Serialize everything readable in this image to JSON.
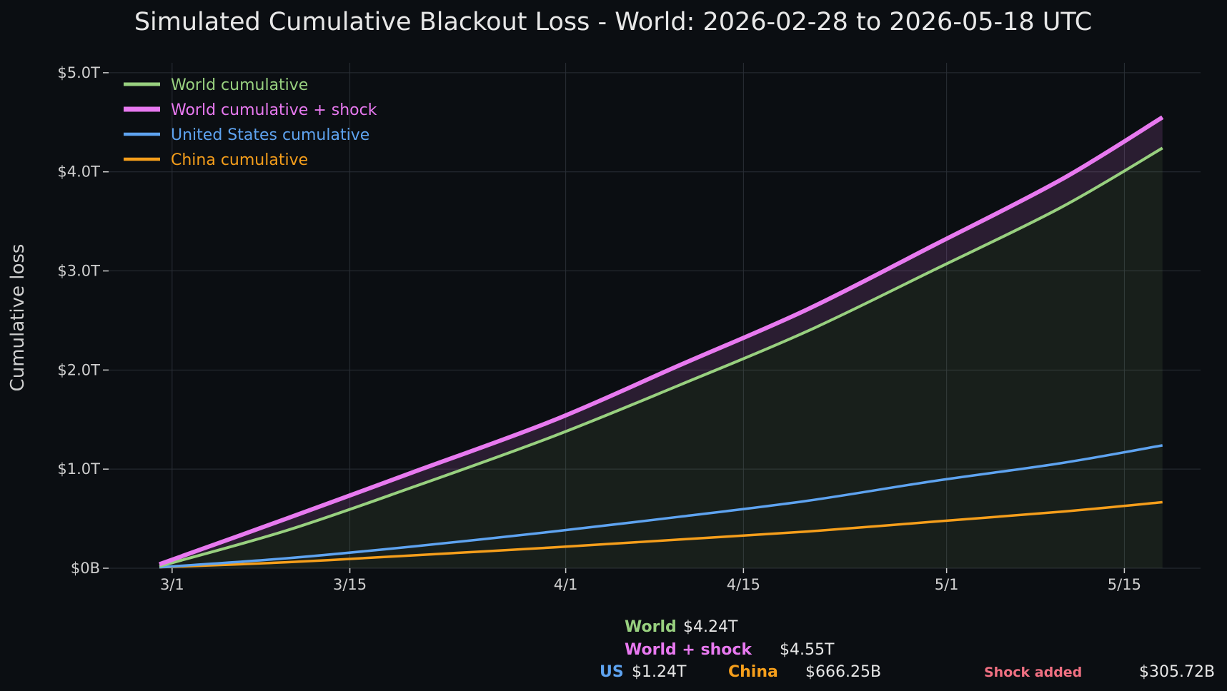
{
  "chart_data": {
    "type": "line",
    "title": "Simulated Cumulative Blackout Loss - World: 2026-02-28 to 2026-05-18 UTC",
    "xlabel": "",
    "ylabel": "Cumulative loss",
    "x_range": [
      "2026-02-28",
      "2026-05-18"
    ],
    "xlim": [
      "2026-02-24",
      "2026-05-21"
    ],
    "ylim": [
      0,
      5.1
    ],
    "y_unit": "trillion USD",
    "grid": true,
    "legend_position": "top-left",
    "x_ticks": [
      {
        "date": "2026-03-01",
        "label": "3/1"
      },
      {
        "date": "2026-03-15",
        "label": "3/15"
      },
      {
        "date": "2026-04-01",
        "label": "4/1"
      },
      {
        "date": "2026-04-15",
        "label": "4/15"
      },
      {
        "date": "2026-05-01",
        "label": "5/1"
      },
      {
        "date": "2026-05-15",
        "label": "5/15"
      }
    ],
    "y_ticks": [
      {
        "value": 0,
        "label": "$0B"
      },
      {
        "value": 1,
        "label": "$1.0T"
      },
      {
        "value": 2,
        "label": "$2.0T"
      },
      {
        "value": 3,
        "label": "$3.0T"
      },
      {
        "value": 4,
        "label": "$4.0T"
      },
      {
        "value": 5,
        "label": "$5.0T"
      }
    ],
    "series": [
      {
        "name": "World cumulative",
        "color": "#98d07f",
        "fill": true,
        "points": [
          [
            "2026-02-28",
            0.02
          ],
          [
            "2026-03-10",
            0.38
          ],
          [
            "2026-03-20",
            0.82
          ],
          [
            "2026-03-31",
            1.33
          ],
          [
            "2026-04-10",
            1.85
          ],
          [
            "2026-04-20",
            2.39
          ],
          [
            "2026-04-30",
            3.01
          ],
          [
            "2026-05-10",
            3.64
          ],
          [
            "2026-05-18",
            4.24
          ]
        ]
      },
      {
        "name": "World cumulative + shock",
        "color": "#e879f0",
        "points": [
          [
            "2026-02-28",
            0.04
          ],
          [
            "2026-03-10",
            0.5
          ],
          [
            "2026-03-20",
            0.97
          ],
          [
            "2026-03-31",
            1.49
          ],
          [
            "2026-04-10",
            2.05
          ],
          [
            "2026-04-20",
            2.61
          ],
          [
            "2026-04-30",
            3.26
          ],
          [
            "2026-05-10",
            3.92
          ],
          [
            "2026-05-18",
            4.55
          ]
        ]
      },
      {
        "name": "United States cumulative",
        "color": "#5ea3f0",
        "points": [
          [
            "2026-02-28",
            0.01
          ],
          [
            "2026-03-10",
            0.1
          ],
          [
            "2026-03-20",
            0.22
          ],
          [
            "2026-03-31",
            0.37
          ],
          [
            "2026-04-10",
            0.52
          ],
          [
            "2026-04-20",
            0.68
          ],
          [
            "2026-04-30",
            0.88
          ],
          [
            "2026-05-10",
            1.06
          ],
          [
            "2026-05-18",
            1.24
          ]
        ]
      },
      {
        "name": "China cumulative",
        "color": "#f59e1b",
        "points": [
          [
            "2026-02-28",
            0.01
          ],
          [
            "2026-03-10",
            0.06
          ],
          [
            "2026-03-20",
            0.13
          ],
          [
            "2026-03-31",
            0.21
          ],
          [
            "2026-04-10",
            0.29
          ],
          [
            "2026-04-20",
            0.37
          ],
          [
            "2026-04-30",
            0.47
          ],
          [
            "2026-05-10",
            0.57
          ],
          [
            "2026-05-18",
            0.666
          ]
        ]
      }
    ]
  },
  "summary": {
    "world_label": "World",
    "world_value": "$4.24T",
    "world_shock_label": "World + shock",
    "world_shock_value": "$4.55T",
    "us_label": "US",
    "us_value": "$1.24T",
    "china_label": "China",
    "china_value": "$666.25B",
    "shock_label": "Shock added",
    "shock_value": "$305.72B",
    "colors": {
      "world": "#98d07f",
      "world_shock": "#e879f0",
      "us": "#5ea3f0",
      "china": "#f59e1b",
      "shock": "#f07082"
    }
  }
}
